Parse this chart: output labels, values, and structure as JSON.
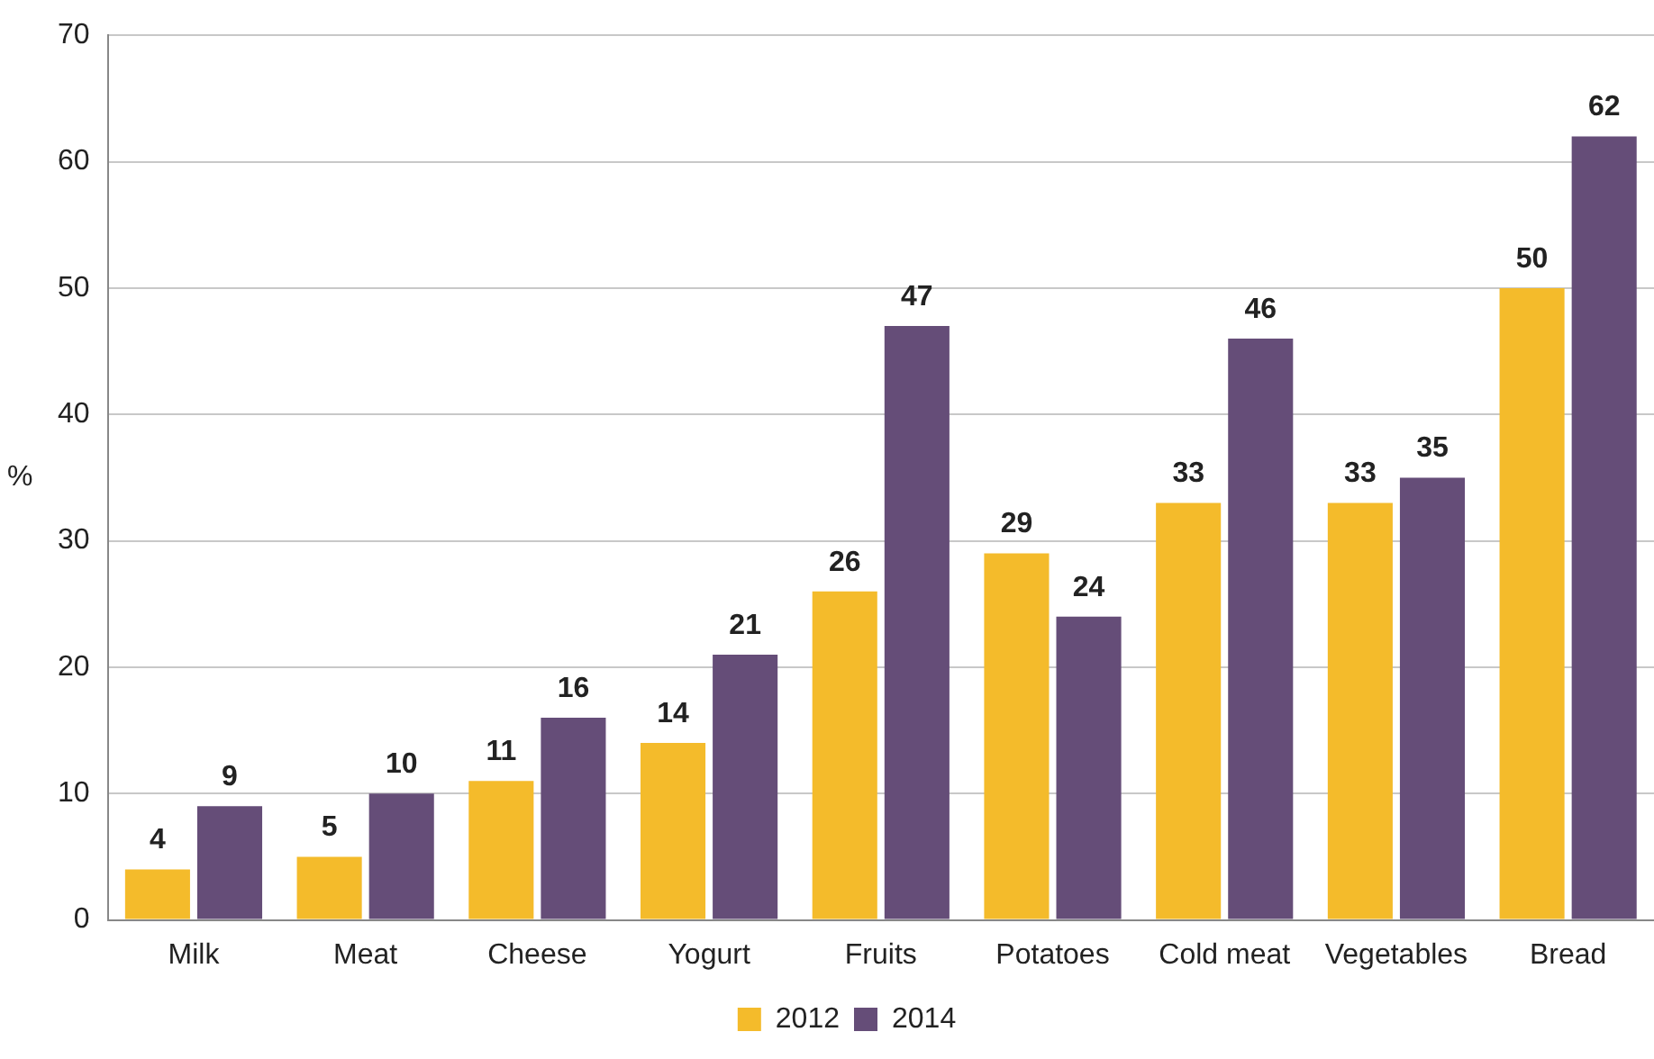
{
  "chart_data": {
    "type": "bar",
    "ylabel": "%",
    "categories": [
      "Milk",
      "Meat",
      "Cheese",
      "Yogurt",
      "Fruits",
      "Potatoes",
      "Cold meat",
      "Vegetables",
      "Bread"
    ],
    "series": [
      {
        "name": "2012",
        "color": "#f4bb2b",
        "values": [
          4,
          5,
          11,
          14,
          26,
          29,
          33,
          33,
          50
        ]
      },
      {
        "name": "2014",
        "color": "#654d78",
        "values": [
          9,
          10,
          16,
          21,
          47,
          24,
          46,
          35,
          62
        ]
      }
    ],
    "ylim": [
      0,
      70
    ],
    "yticks": [
      0,
      10,
      20,
      30,
      40,
      50,
      60,
      70
    ],
    "grid": "y",
    "legend": "bottom",
    "data_labels": true
  }
}
